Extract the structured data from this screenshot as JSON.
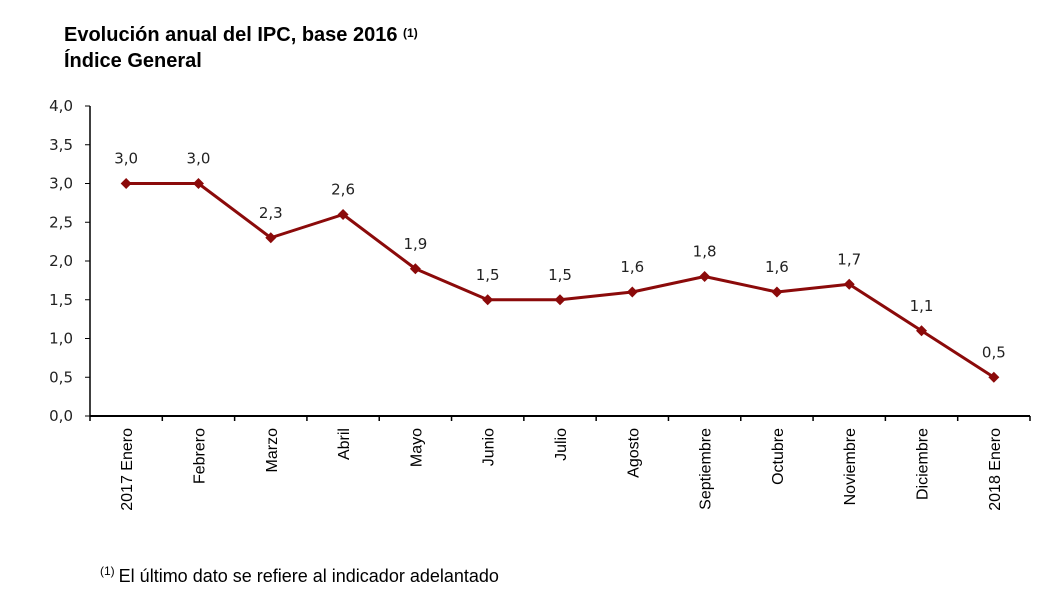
{
  "title": {
    "line1": "Evolución anual del IPC, base 2016",
    "sup": "(1)",
    "line2": "Índice General"
  },
  "footnote": {
    "sup": "(1)",
    "text": "El último dato se refiere al indicador adelantado"
  },
  "chart_data": {
    "type": "line",
    "title": "Evolución anual del IPC, base 2016 (1) Índice General",
    "xlabel": "",
    "ylabel": "",
    "ylim": [
      0,
      4
    ],
    "yticks": [
      "0,0",
      "0,5",
      "1,0",
      "1,5",
      "2,0",
      "2,5",
      "3,0",
      "3,5",
      "4,0"
    ],
    "ytick_values": [
      0,
      0.5,
      1,
      1.5,
      2,
      2.5,
      3,
      3.5,
      4
    ],
    "categories": [
      "2017 Enero",
      "Febrero",
      "Marzo",
      "Abril",
      "Mayo",
      "Junio",
      "Julio",
      "Agosto",
      "Septiembre",
      "Octubre",
      "Noviembre",
      "Diciembre",
      "2018 Enero"
    ],
    "series": [
      {
        "name": "Índice General",
        "color": "#8B0A0A",
        "marker": "diamond",
        "values": [
          3.0,
          3.0,
          2.3,
          2.6,
          1.9,
          1.5,
          1.5,
          1.6,
          1.8,
          1.6,
          1.7,
          1.1,
          0.5
        ],
        "labels": [
          "3,0",
          "3,0",
          "2,3",
          "2,6",
          "1,9",
          "1,5",
          "1,5",
          "1,6",
          "1,8",
          "1,6",
          "1,7",
          "1,1",
          "0,5"
        ]
      }
    ],
    "grid": false,
    "legend": "none"
  }
}
